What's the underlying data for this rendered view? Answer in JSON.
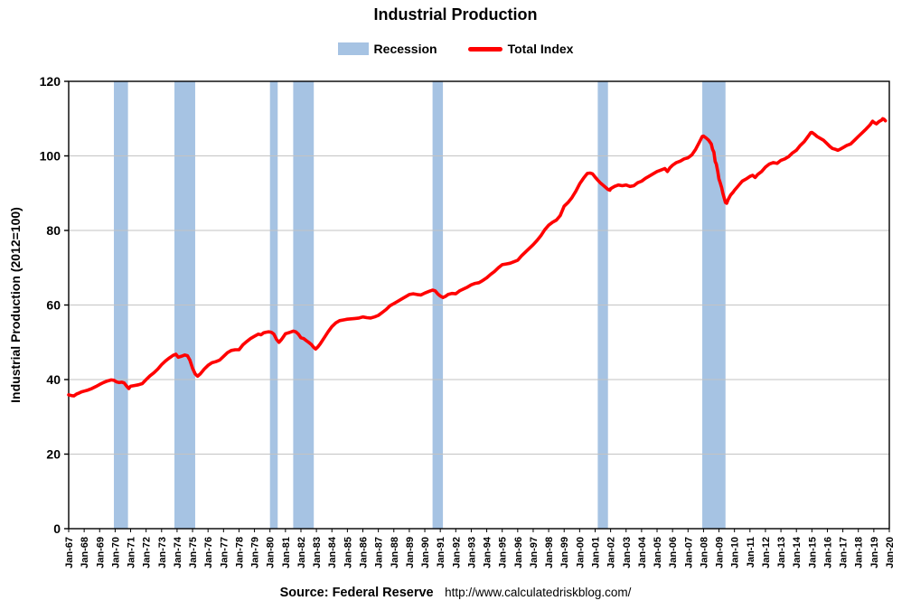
{
  "title": "Industrial Production",
  "legend": {
    "recession_label": "Recession",
    "total_index_label": "Total Index"
  },
  "footer": {
    "source_label": "Source: Federal Reserve",
    "url": "http://www.calculatedriskblog.com/"
  },
  "colors": {
    "recession_band": "#A6C3E3",
    "line": "#FF0000",
    "grid": "#C3C3C3",
    "axis": "#000000"
  },
  "chart_data": {
    "type": "line",
    "title": "Industrial Production",
    "xlabel": "",
    "ylabel": "Industrial Production (2012=100)",
    "xlim": [
      1967,
      2020
    ],
    "ylim": [
      0,
      120
    ],
    "y_ticks": [
      0,
      20,
      40,
      60,
      80,
      100,
      120
    ],
    "grid": "horizontal",
    "legend_position": "top",
    "x_tick_labels": [
      "Jan-67",
      "Jan-68",
      "Jan-69",
      "Jan-70",
      "Jan-71",
      "Jan-72",
      "Jan-73",
      "Jan-74",
      "Jan-75",
      "Jan-76",
      "Jan-77",
      "Jan-78",
      "Jan-79",
      "Jan-80",
      "Jan-81",
      "Jan-82",
      "Jan-83",
      "Jan-84",
      "Jan-85",
      "Jan-86",
      "Jan-87",
      "Jan-88",
      "Jan-89",
      "Jan-90",
      "Jan-91",
      "Jan-92",
      "Jan-93",
      "Jan-94",
      "Jan-95",
      "Jan-96",
      "Jan-97",
      "Jan-98",
      "Jan-99",
      "Jan-00",
      "Jan-01",
      "Jan-02",
      "Jan-03",
      "Jan-04",
      "Jan-05",
      "Jan-06",
      "Jan-07",
      "Jan-08",
      "Jan-09",
      "Jan-10",
      "Jan-11",
      "Jan-12",
      "Jan-13",
      "Jan-14",
      "Jan-15",
      "Jan-16",
      "Jan-17",
      "Jan-18",
      "Jan-19",
      "Jan-20"
    ],
    "recession_bands": [
      [
        1969.92,
        1970.83
      ],
      [
        1973.83,
        1975.17
      ],
      [
        1980.0,
        1980.5
      ],
      [
        1981.5,
        1982.83
      ],
      [
        1990.5,
        1991.17
      ],
      [
        2001.17,
        2001.83
      ],
      [
        2007.92,
        2009.42
      ]
    ],
    "series": [
      {
        "name": "Total Index",
        "color": "#FF0000",
        "points": [
          [
            1967.0,
            35.9
          ],
          [
            1967.17,
            35.7
          ],
          [
            1967.33,
            35.6
          ],
          [
            1967.5,
            36.1
          ],
          [
            1967.67,
            36.4
          ],
          [
            1967.83,
            36.7
          ],
          [
            1968.0,
            36.9
          ],
          [
            1968.25,
            37.2
          ],
          [
            1968.5,
            37.6
          ],
          [
            1968.75,
            38.1
          ],
          [
            1969.0,
            38.7
          ],
          [
            1969.25,
            39.2
          ],
          [
            1969.5,
            39.6
          ],
          [
            1969.75,
            39.9
          ],
          [
            1969.92,
            39.8
          ],
          [
            1970.08,
            39.4
          ],
          [
            1970.25,
            39.2
          ],
          [
            1970.42,
            39.3
          ],
          [
            1970.58,
            39.1
          ],
          [
            1970.75,
            38.2
          ],
          [
            1970.88,
            37.6
          ],
          [
            1971.0,
            38.2
          ],
          [
            1971.25,
            38.4
          ],
          [
            1971.5,
            38.6
          ],
          [
            1971.75,
            38.9
          ],
          [
            1972.0,
            40.0
          ],
          [
            1972.25,
            41.0
          ],
          [
            1972.5,
            41.8
          ],
          [
            1972.75,
            42.8
          ],
          [
            1973.0,
            44.0
          ],
          [
            1973.25,
            45.0
          ],
          [
            1973.5,
            45.8
          ],
          [
            1973.75,
            46.5
          ],
          [
            1973.92,
            46.8
          ],
          [
            1974.08,
            46.0
          ],
          [
            1974.25,
            46.2
          ],
          [
            1974.5,
            46.6
          ],
          [
            1974.67,
            46.4
          ],
          [
            1974.83,
            45.2
          ],
          [
            1975.0,
            43.0
          ],
          [
            1975.17,
            41.5
          ],
          [
            1975.33,
            40.9
          ],
          [
            1975.5,
            41.5
          ],
          [
            1975.75,
            42.8
          ],
          [
            1976.0,
            43.8
          ],
          [
            1976.25,
            44.5
          ],
          [
            1976.5,
            44.8
          ],
          [
            1976.75,
            45.2
          ],
          [
            1977.0,
            46.2
          ],
          [
            1977.25,
            47.2
          ],
          [
            1977.5,
            47.8
          ],
          [
            1977.75,
            48.0
          ],
          [
            1978.0,
            48.0
          ],
          [
            1978.25,
            49.3
          ],
          [
            1978.5,
            50.2
          ],
          [
            1978.75,
            51.0
          ],
          [
            1979.0,
            51.6
          ],
          [
            1979.25,
            52.2
          ],
          [
            1979.42,
            52.0
          ],
          [
            1979.58,
            52.5
          ],
          [
            1979.75,
            52.7
          ],
          [
            1979.92,
            52.8
          ],
          [
            1980.08,
            52.7
          ],
          [
            1980.25,
            52.2
          ],
          [
            1980.42,
            50.8
          ],
          [
            1980.58,
            50.0
          ],
          [
            1980.75,
            50.8
          ],
          [
            1980.92,
            51.8
          ],
          [
            1981.0,
            52.3
          ],
          [
            1981.25,
            52.6
          ],
          [
            1981.5,
            53.0
          ],
          [
            1981.67,
            52.8
          ],
          [
            1981.83,
            52.2
          ],
          [
            1982.0,
            51.2
          ],
          [
            1982.17,
            51.0
          ],
          [
            1982.33,
            50.5
          ],
          [
            1982.5,
            50.0
          ],
          [
            1982.67,
            49.4
          ],
          [
            1982.83,
            48.6
          ],
          [
            1982.95,
            48.2
          ],
          [
            1983.08,
            48.7
          ],
          [
            1983.25,
            49.6
          ],
          [
            1983.5,
            51.2
          ],
          [
            1983.75,
            52.8
          ],
          [
            1984.0,
            54.2
          ],
          [
            1984.25,
            55.2
          ],
          [
            1984.5,
            55.8
          ],
          [
            1984.75,
            56.0
          ],
          [
            1985.0,
            56.2
          ],
          [
            1985.25,
            56.3
          ],
          [
            1985.5,
            56.4
          ],
          [
            1985.75,
            56.5
          ],
          [
            1986.0,
            56.8
          ],
          [
            1986.25,
            56.6
          ],
          [
            1986.5,
            56.5
          ],
          [
            1986.75,
            56.8
          ],
          [
            1987.0,
            57.2
          ],
          [
            1987.25,
            58.0
          ],
          [
            1987.5,
            58.8
          ],
          [
            1987.75,
            59.8
          ],
          [
            1988.0,
            60.4
          ],
          [
            1988.25,
            61.0
          ],
          [
            1988.5,
            61.6
          ],
          [
            1988.75,
            62.2
          ],
          [
            1989.0,
            62.8
          ],
          [
            1989.25,
            63.0
          ],
          [
            1989.5,
            62.8
          ],
          [
            1989.75,
            62.7
          ],
          [
            1990.0,
            63.2
          ],
          [
            1990.25,
            63.6
          ],
          [
            1990.5,
            64.0
          ],
          [
            1990.67,
            63.8
          ],
          [
            1990.83,
            63.0
          ],
          [
            1991.0,
            62.4
          ],
          [
            1991.17,
            62.0
          ],
          [
            1991.33,
            62.3
          ],
          [
            1991.5,
            62.8
          ],
          [
            1991.75,
            63.1
          ],
          [
            1992.0,
            63.0
          ],
          [
            1992.25,
            63.8
          ],
          [
            1992.5,
            64.3
          ],
          [
            1992.75,
            64.8
          ],
          [
            1993.0,
            65.4
          ],
          [
            1993.25,
            65.8
          ],
          [
            1993.5,
            66.0
          ],
          [
            1993.75,
            66.6
          ],
          [
            1994.0,
            67.3
          ],
          [
            1994.25,
            68.2
          ],
          [
            1994.5,
            69.0
          ],
          [
            1994.75,
            70.0
          ],
          [
            1995.0,
            70.8
          ],
          [
            1995.25,
            71.0
          ],
          [
            1995.5,
            71.2
          ],
          [
            1995.75,
            71.6
          ],
          [
            1996.0,
            72.0
          ],
          [
            1996.25,
            73.2
          ],
          [
            1996.5,
            74.2
          ],
          [
            1996.75,
            75.2
          ],
          [
            1997.0,
            76.2
          ],
          [
            1997.25,
            77.3
          ],
          [
            1997.5,
            78.6
          ],
          [
            1997.75,
            80.2
          ],
          [
            1998.0,
            81.4
          ],
          [
            1998.25,
            82.2
          ],
          [
            1998.5,
            82.8
          ],
          [
            1998.75,
            84.0
          ],
          [
            1999.0,
            86.5
          ],
          [
            1999.25,
            87.5
          ],
          [
            1999.5,
            88.8
          ],
          [
            1999.75,
            90.5
          ],
          [
            2000.0,
            92.5
          ],
          [
            2000.25,
            94.0
          ],
          [
            2000.5,
            95.3
          ],
          [
            2000.67,
            95.4
          ],
          [
            2000.83,
            95.2
          ],
          [
            2001.0,
            94.3
          ],
          [
            2001.17,
            93.5
          ],
          [
            2001.33,
            92.8
          ],
          [
            2001.5,
            92.2
          ],
          [
            2001.67,
            91.6
          ],
          [
            2001.83,
            91.0
          ],
          [
            2001.95,
            90.8
          ],
          [
            2002.0,
            91.2
          ],
          [
            2002.25,
            91.8
          ],
          [
            2002.5,
            92.2
          ],
          [
            2002.75,
            92.0
          ],
          [
            2003.0,
            92.2
          ],
          [
            2003.25,
            91.8
          ],
          [
            2003.5,
            92.0
          ],
          [
            2003.75,
            92.8
          ],
          [
            2004.0,
            93.2
          ],
          [
            2004.25,
            94.0
          ],
          [
            2004.5,
            94.6
          ],
          [
            2004.75,
            95.2
          ],
          [
            2005.0,
            95.8
          ],
          [
            2005.25,
            96.2
          ],
          [
            2005.5,
            96.6
          ],
          [
            2005.67,
            95.8
          ],
          [
            2005.83,
            96.8
          ],
          [
            2006.0,
            97.5
          ],
          [
            2006.25,
            98.2
          ],
          [
            2006.5,
            98.6
          ],
          [
            2006.75,
            99.2
          ],
          [
            2007.0,
            99.5
          ],
          [
            2007.25,
            100.3
          ],
          [
            2007.5,
            101.8
          ],
          [
            2007.75,
            103.8
          ],
          [
            2007.92,
            105.2
          ],
          [
            2008.0,
            105.3
          ],
          [
            2008.17,
            104.8
          ],
          [
            2008.33,
            104.2
          ],
          [
            2008.5,
            103.2
          ],
          [
            2008.58,
            101.8
          ],
          [
            2008.67,
            101.0
          ],
          [
            2008.75,
            98.5
          ],
          [
            2008.83,
            97.8
          ],
          [
            2008.92,
            95.8
          ],
          [
            2009.0,
            93.8
          ],
          [
            2009.08,
            92.8
          ],
          [
            2009.17,
            91.5
          ],
          [
            2009.25,
            90.0
          ],
          [
            2009.33,
            88.8
          ],
          [
            2009.42,
            87.5
          ],
          [
            2009.5,
            87.3
          ],
          [
            2009.58,
            88.2
          ],
          [
            2009.75,
            89.5
          ],
          [
            2009.92,
            90.3
          ],
          [
            2010.0,
            90.8
          ],
          [
            2010.25,
            92.0
          ],
          [
            2010.5,
            93.2
          ],
          [
            2010.75,
            93.8
          ],
          [
            2011.0,
            94.5
          ],
          [
            2011.17,
            94.8
          ],
          [
            2011.33,
            94.2
          ],
          [
            2011.5,
            95.0
          ],
          [
            2011.75,
            95.8
          ],
          [
            2012.0,
            97.0
          ],
          [
            2012.25,
            97.8
          ],
          [
            2012.5,
            98.2
          ],
          [
            2012.75,
            98.0
          ],
          [
            2013.0,
            98.8
          ],
          [
            2013.25,
            99.2
          ],
          [
            2013.5,
            99.8
          ],
          [
            2013.75,
            100.8
          ],
          [
            2014.0,
            101.5
          ],
          [
            2014.25,
            102.8
          ],
          [
            2014.5,
            103.8
          ],
          [
            2014.75,
            105.2
          ],
          [
            2014.92,
            106.2
          ],
          [
            2015.0,
            106.3
          ],
          [
            2015.17,
            105.8
          ],
          [
            2015.33,
            105.2
          ],
          [
            2015.5,
            104.8
          ],
          [
            2015.75,
            104.2
          ],
          [
            2016.0,
            103.2
          ],
          [
            2016.17,
            102.5
          ],
          [
            2016.33,
            102.0
          ],
          [
            2016.5,
            101.8
          ],
          [
            2016.67,
            101.5
          ],
          [
            2016.83,
            101.8
          ],
          [
            2017.0,
            102.2
          ],
          [
            2017.25,
            102.8
          ],
          [
            2017.5,
            103.2
          ],
          [
            2017.75,
            104.2
          ],
          [
            2018.0,
            105.2
          ],
          [
            2018.25,
            106.2
          ],
          [
            2018.5,
            107.2
          ],
          [
            2018.75,
            108.3
          ],
          [
            2018.92,
            109.3
          ],
          [
            2019.0,
            109.0
          ],
          [
            2019.17,
            108.6
          ],
          [
            2019.33,
            109.2
          ],
          [
            2019.5,
            109.6
          ],
          [
            2019.58,
            110.0
          ],
          [
            2019.67,
            109.8
          ],
          [
            2019.75,
            109.4
          ]
        ]
      }
    ]
  }
}
